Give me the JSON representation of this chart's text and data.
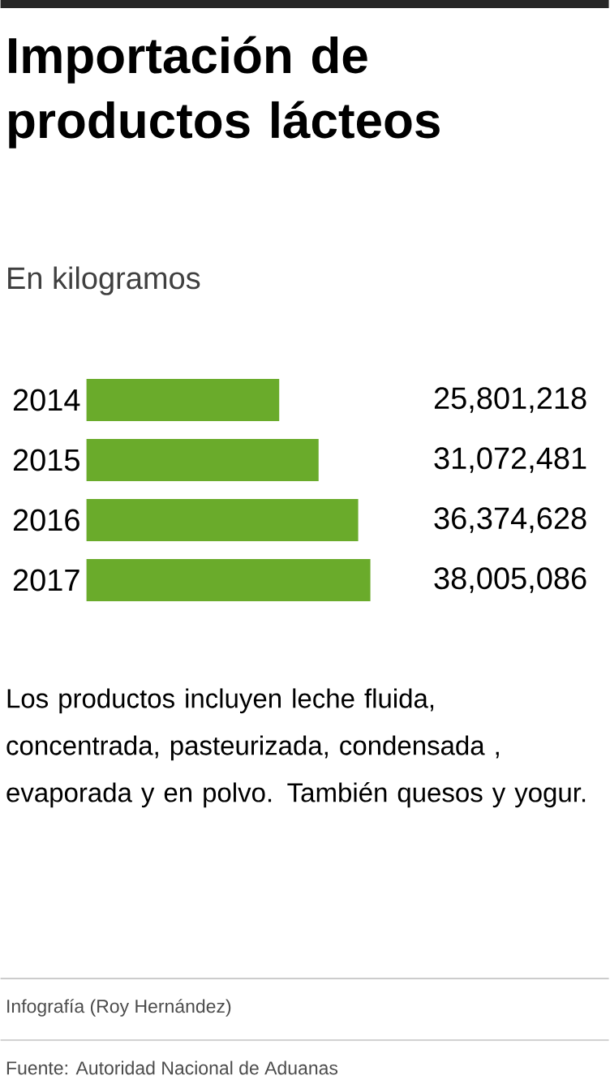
{
  "chart_data": {
    "type": "bar",
    "orientation": "horizontal",
    "title": "Importación de productos lácteos",
    "subtitle": "En kilogramos",
    "categories": [
      "2014",
      "2015",
      "2016",
      "2017"
    ],
    "values": [
      25801218,
      31072481,
      36374628,
      38005086
    ],
    "value_labels": [
      "25,801,218",
      "31,072,481",
      "36,374,628",
      "38,005,086"
    ],
    "color": "#6aab2b",
    "tick_labels": "y",
    "annotations": [
      "Los productos incluyen leche fluida, concentrada, pasteurizada, condensada , evaporada y en polvo. También quesos y yogur.",
      "Infografía (Roy Hernández)",
      "Fuente: Autoridad Nacional de Aduanas"
    ]
  }
}
